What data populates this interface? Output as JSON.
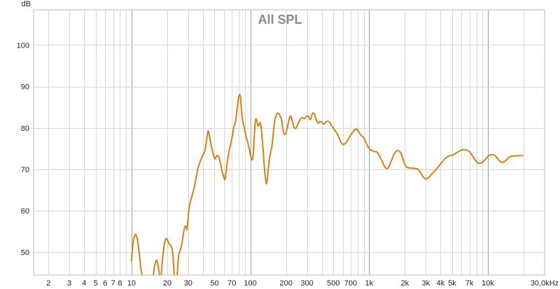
{
  "chart_data": {
    "type": "line",
    "title": "All SPL",
    "ylabel": "dB",
    "xlabel": "",
    "xscale": "log",
    "xlim": [
      1.5,
      30000
    ],
    "ylim": [
      44.5,
      108.5
    ],
    "grid": true,
    "y_ticks": [
      {
        "value": 50,
        "label": "50"
      },
      {
        "value": 60,
        "label": "60"
      },
      {
        "value": 70,
        "label": "70"
      },
      {
        "value": 80,
        "label": "80"
      },
      {
        "value": 90,
        "label": "90"
      },
      {
        "value": 100,
        "label": "100"
      }
    ],
    "x_ticks": [
      {
        "value": 2,
        "label": "2"
      },
      {
        "value": 3,
        "label": "3"
      },
      {
        "value": 4,
        "label": "4"
      },
      {
        "value": 5,
        "label": "5"
      },
      {
        "value": 6,
        "label": "6"
      },
      {
        "value": 7,
        "label": "7"
      },
      {
        "value": 8,
        "label": "8"
      },
      {
        "value": 10,
        "label": "10"
      },
      {
        "value": 20,
        "label": "20"
      },
      {
        "value": 30,
        "label": "30"
      },
      {
        "value": 50,
        "label": "50"
      },
      {
        "value": 70,
        "label": "70"
      },
      {
        "value": 100,
        "label": "100"
      },
      {
        "value": 200,
        "label": "200"
      },
      {
        "value": 300,
        "label": "300"
      },
      {
        "value": 500,
        "label": "500"
      },
      {
        "value": 700,
        "label": "700"
      },
      {
        "value": 1000,
        "label": "1k"
      },
      {
        "value": 2000,
        "label": "2k"
      },
      {
        "value": 3000,
        "label": "3k"
      },
      {
        "value": 4000,
        "label": "4k"
      },
      {
        "value": 5000,
        "label": "5k"
      },
      {
        "value": 7000,
        "label": "7k"
      },
      {
        "value": 10000,
        "label": "10k"
      },
      {
        "value": 30000,
        "label": "30,0kHz"
      }
    ],
    "series": [
      {
        "color": "#d97f14",
        "segments": [
          [
            [
              10,
              48
            ],
            [
              10.2,
              51
            ],
            [
              10.4,
              53
            ],
            [
              10.7,
              54.2
            ],
            [
              11,
              54
            ],
            [
              11.3,
              52.5
            ],
            [
              11.6,
              50
            ],
            [
              12,
              46
            ],
            [
              12.3,
              44.5
            ]
          ],
          [
            [
              15.3,
              44.5
            ],
            [
              15.6,
              46.5
            ],
            [
              16,
              47.8
            ],
            [
              16.3,
              48
            ],
            [
              16.7,
              47
            ],
            [
              17,
              45.5
            ],
            [
              17.2,
              44.5
            ]
          ],
          [
            [
              17.8,
              44.5
            ],
            [
              18.2,
              48
            ],
            [
              18.8,
              51.5
            ],
            [
              19.4,
              53.2
            ],
            [
              20,
              53
            ],
            [
              20.7,
              52
            ],
            [
              21.5,
              51.5
            ],
            [
              22.2,
              50
            ],
            [
              22.6,
              47
            ],
            [
              22.9,
              44.5
            ]
          ],
          [
            [
              24.2,
              44.5
            ],
            [
              24.6,
              47
            ],
            [
              25,
              49.5
            ],
            [
              25.8,
              50.5
            ],
            [
              26.5,
              52
            ],
            [
              27.2,
              54
            ],
            [
              28,
              56
            ],
            [
              28.8,
              56.2
            ],
            [
              29.3,
              55.5
            ],
            [
              29.8,
              57.5
            ],
            [
              30.5,
              60.5
            ],
            [
              31.5,
              62.5
            ],
            [
              33,
              64.5
            ],
            [
              34.5,
              67
            ],
            [
              36,
              70
            ],
            [
              38,
              72
            ],
            [
              40,
              73.5
            ],
            [
              41.5,
              74.5
            ],
            [
              43,
              77.5
            ],
            [
              44,
              79.2
            ],
            [
              45,
              78.5
            ],
            [
              46,
              77
            ],
            [
              47.5,
              75
            ],
            [
              49,
              73.5
            ],
            [
              50.5,
              72.5
            ],
            [
              52,
              73.2
            ],
            [
              53.5,
              73.3
            ],
            [
              55,
              72.5
            ],
            [
              56.5,
              71
            ],
            [
              58,
              69.5
            ],
            [
              60,
              68
            ],
            [
              61,
              67.5
            ],
            [
              62,
              68.5
            ],
            [
              63.5,
              71
            ],
            [
              65,
              73
            ],
            [
              67,
              75
            ],
            [
              69,
              76.5
            ],
            [
              71,
              78.5
            ],
            [
              73,
              80.5
            ],
            [
              75,
              81.5
            ],
            [
              77,
              84
            ],
            [
              79,
              86.5
            ],
            [
              81,
              88
            ],
            [
              82.5,
              87.5
            ],
            [
              84,
              85
            ],
            [
              86,
              82
            ],
            [
              89,
              80
            ],
            [
              92,
              78
            ],
            [
              95,
              76.5
            ],
            [
              98,
              75
            ],
            [
              101,
              73
            ],
            [
              104,
              72.3
            ],
            [
              106,
              74
            ],
            [
              108,
              78
            ],
            [
              110,
              81.5
            ],
            [
              112,
              82.2
            ],
            [
              114,
              81.5
            ],
            [
              116,
              80.5
            ],
            [
              119,
              80.8
            ],
            [
              121,
              81.3
            ],
            [
              123,
              80.5
            ],
            [
              125,
              78.5
            ],
            [
              128,
              75
            ],
            [
              131,
              71
            ],
            [
              134,
              68
            ],
            [
              137,
              66.5
            ],
            [
              140,
              68.5
            ],
            [
              144,
              72
            ],
            [
              148,
              74
            ],
            [
              152,
              75.5
            ],
            [
              156,
              78.5
            ],
            [
              160,
              81.5
            ],
            [
              165,
              83
            ],
            [
              170,
              83.6
            ],
            [
              176,
              83.2
            ],
            [
              183,
              82
            ],
            [
              190,
              79
            ],
            [
              197,
              78.5
            ],
            [
              205,
              80
            ],
            [
              213,
              82.3
            ],
            [
              220,
              82.8
            ],
            [
              227,
              81.3
            ],
            [
              235,
              80
            ],
            [
              243,
              80
            ],
            [
              252,
              81
            ],
            [
              262,
              82
            ],
            [
              273,
              82.5
            ],
            [
              285,
              82.2
            ],
            [
              296,
              82.8
            ],
            [
              308,
              82.8
            ],
            [
              320,
              82
            ],
            [
              333,
              83.4
            ],
            [
              345,
              83.5
            ],
            [
              358,
              82
            ],
            [
              372,
              81.2
            ],
            [
              386,
              81.5
            ],
            [
              400,
              81.4
            ],
            [
              415,
              80.9
            ],
            [
              430,
              81.4
            ],
            [
              447,
              81.6
            ],
            [
              465,
              81.3
            ],
            [
              485,
              80.5
            ],
            [
              505,
              79.8
            ],
            [
              530,
              78.9
            ],
            [
              555,
              77.8
            ],
            [
              580,
              76.5
            ],
            [
              605,
              76
            ],
            [
              630,
              76.3
            ],
            [
              660,
              77
            ],
            [
              690,
              78
            ],
            [
              720,
              78.8
            ],
            [
              750,
              79.5
            ],
            [
              780,
              79.7
            ],
            [
              810,
              79.3
            ],
            [
              840,
              78.5
            ],
            [
              870,
              78
            ],
            [
              905,
              77.6
            ],
            [
              940,
              76.5
            ],
            [
              975,
              75.5
            ],
            [
              1015,
              74.8
            ],
            [
              1060,
              74.5
            ],
            [
              1110,
              74.3
            ],
            [
              1160,
              74.2
            ],
            [
              1210,
              73.5
            ],
            [
              1260,
              72.5
            ],
            [
              1310,
              71.5
            ],
            [
              1360,
              70.5
            ],
            [
              1410,
              70.2
            ],
            [
              1460,
              70.5
            ],
            [
              1510,
              71.5
            ],
            [
              1560,
              72.5
            ],
            [
              1610,
              73.5
            ],
            [
              1670,
              74.2
            ],
            [
              1740,
              74.5
            ],
            [
              1810,
              74.3
            ],
            [
              1880,
              73.5
            ],
            [
              1950,
              72
            ],
            [
              2030,
              70.8
            ],
            [
              2120,
              70.4
            ],
            [
              2220,
              70.3
            ],
            [
              2330,
              70.3
            ],
            [
              2450,
              70.2
            ],
            [
              2580,
              70
            ],
            [
              2710,
              69.2
            ],
            [
              2850,
              68.2
            ],
            [
              2990,
              67.7
            ],
            [
              3130,
              67.9
            ],
            [
              3280,
              68.5
            ],
            [
              3450,
              69.2
            ],
            [
              3630,
              69.8
            ],
            [
              3820,
              70.6
            ],
            [
              4020,
              71.4
            ],
            [
              4230,
              72.2
            ],
            [
              4450,
              72.8
            ],
            [
              4680,
              73.2
            ],
            [
              4920,
              73.4
            ],
            [
              5180,
              73.6
            ],
            [
              5450,
              74
            ],
            [
              5740,
              74.4
            ],
            [
              6040,
              74.7
            ],
            [
              6350,
              74.8
            ],
            [
              6680,
              74.6
            ],
            [
              7030,
              74.2
            ],
            [
              7400,
              73.3
            ],
            [
              7790,
              72.3
            ],
            [
              8200,
              71.6
            ],
            [
              8630,
              71.5
            ],
            [
              9080,
              71.8
            ],
            [
              9560,
              72.5
            ],
            [
              10060,
              73.2
            ],
            [
              10590,
              73.5
            ],
            [
              11150,
              73.5
            ],
            [
              11740,
              73
            ],
            [
              12360,
              72.2
            ],
            [
              13010,
              71.7
            ],
            [
              13700,
              71.8
            ],
            [
              14420,
              72.4
            ],
            [
              15180,
              73
            ],
            [
              15980,
              73.2
            ],
            [
              16820,
              73.2
            ],
            [
              17710,
              73.3
            ],
            [
              18650,
              73.3
            ],
            [
              19600,
              73.3
            ]
          ]
        ]
      }
    ]
  }
}
